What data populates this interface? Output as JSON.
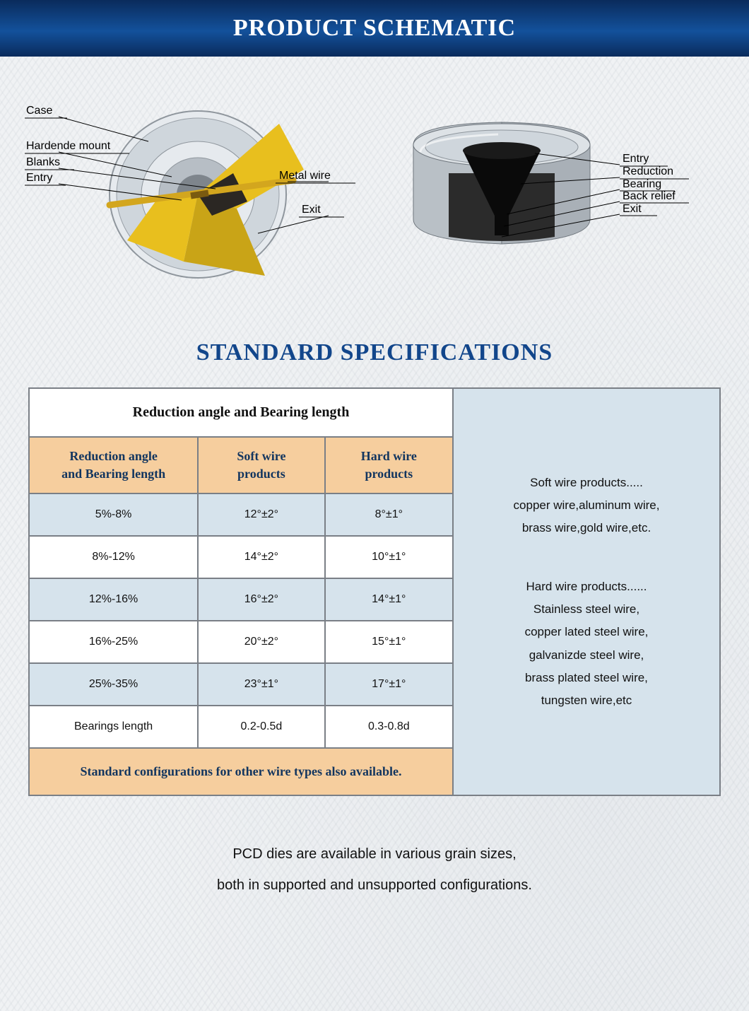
{
  "header": {
    "title": "PRODUCT SCHEMATIC"
  },
  "schematic": {
    "left": {
      "labels": {
        "case": "Case",
        "hardened_mount": "Hardende mount",
        "blanks": "Blanks",
        "entry": "Entry",
        "metal_wire": "Metal wire",
        "exit": "Exit"
      },
      "colors": {
        "case_outer": "#cfd6dc",
        "case_inner": "#aeb6bd",
        "cut_face": "#e8bf1e",
        "cut_shadow": "#b8960f",
        "blank": "#2b2723",
        "wire": "#d3a61e"
      }
    },
    "right": {
      "labels": {
        "entry": "Entry",
        "reduction": "Reduction",
        "bearing": "Bearing",
        "back_relief": "Back relief",
        "exit": "Exit"
      },
      "colors": {
        "case": "#b9c0c6",
        "case_top": "#dde2e6",
        "insert": "#2b2b2b",
        "bore": "#0a0a0a"
      }
    }
  },
  "spec": {
    "section_title": "STANDARD SPECIFICATIONS",
    "table_title": "Reduction angle and Bearing length",
    "columns": [
      "Reduction angle\nand Bearing length",
      "Soft wire\nproducts",
      "Hard wire\nproducts"
    ],
    "rows": [
      {
        "a": "5%-8%",
        "b": "12°±2°",
        "c": "8°±1°",
        "alt": true
      },
      {
        "a": "8%-12%",
        "b": "14°±2°",
        "c": "10°±1°",
        "alt": false
      },
      {
        "a": "12%-16%",
        "b": "16°±2°",
        "c": "14°±1°",
        "alt": true
      },
      {
        "a": "16%-25%",
        "b": "20°±2°",
        "c": "15°±1°",
        "alt": false
      },
      {
        "a": "25%-35%",
        "b": "23°±1°",
        "c": "17°±1°",
        "alt": true
      },
      {
        "a": "Bearings length",
        "b": "0.2-0.5d",
        "c": "0.3-0.8d",
        "alt": false
      }
    ],
    "footnote": "Standard configurations for other wire types also available.",
    "side": {
      "soft_title": "Soft wire products.....",
      "soft_line1": "copper wire,aluminum wire,",
      "soft_line2": "brass wire,gold wire,etc.",
      "hard_title": "Hard wire products......",
      "hard_line1": "Stainless steel wire,",
      "hard_line2": "copper lated steel wire,",
      "hard_line3": "galvanizde steel wire,",
      "hard_line4": "brass plated steel wire,",
      "hard_line5": "tungsten wire,etc"
    },
    "colors": {
      "header_bg": "#f6ce9e",
      "header_text": "#12355f",
      "alt_row_bg": "#d6e3ec",
      "border": "#7a7f86"
    }
  },
  "footer": {
    "line1": "PCD dies are available in various grain sizes,",
    "line2": "both in supported and unsupported configurations."
  }
}
